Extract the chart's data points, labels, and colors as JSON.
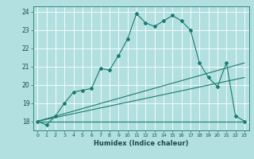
{
  "xlabel": "Humidex (Indice chaleur)",
  "background_color": "#b2e0e0",
  "grid_color": "#ffffff",
  "line_color": "#1a7a6e",
  "xlim": [
    -0.5,
    23.5
  ],
  "ylim": [
    17.5,
    24.3
  ],
  "yticks": [
    18,
    19,
    20,
    21,
    22,
    23,
    24
  ],
  "xticks": [
    0,
    1,
    2,
    3,
    4,
    5,
    6,
    7,
    8,
    9,
    10,
    11,
    12,
    13,
    14,
    15,
    16,
    17,
    18,
    19,
    20,
    21,
    22,
    23
  ],
  "line1_x": [
    0,
    1,
    2,
    3,
    4,
    5,
    6,
    7,
    8,
    9,
    10,
    11,
    12,
    13,
    14,
    15,
    16,
    17,
    18,
    19,
    20,
    21,
    22,
    23
  ],
  "line1_y": [
    18.0,
    17.8,
    18.3,
    19.0,
    19.6,
    19.7,
    19.8,
    20.9,
    20.8,
    21.6,
    22.5,
    23.9,
    23.4,
    23.2,
    23.5,
    23.8,
    23.5,
    23.0,
    21.2,
    20.4,
    19.9,
    21.2,
    18.3,
    18.0
  ],
  "line2_x": [
    0,
    23
  ],
  "line2_y": [
    18.0,
    21.2
  ],
  "line3_x": [
    0,
    23
  ],
  "line3_y": [
    18.0,
    18.0
  ],
  "line4_x": [
    0,
    23
  ],
  "line4_y": [
    18.0,
    20.4
  ]
}
